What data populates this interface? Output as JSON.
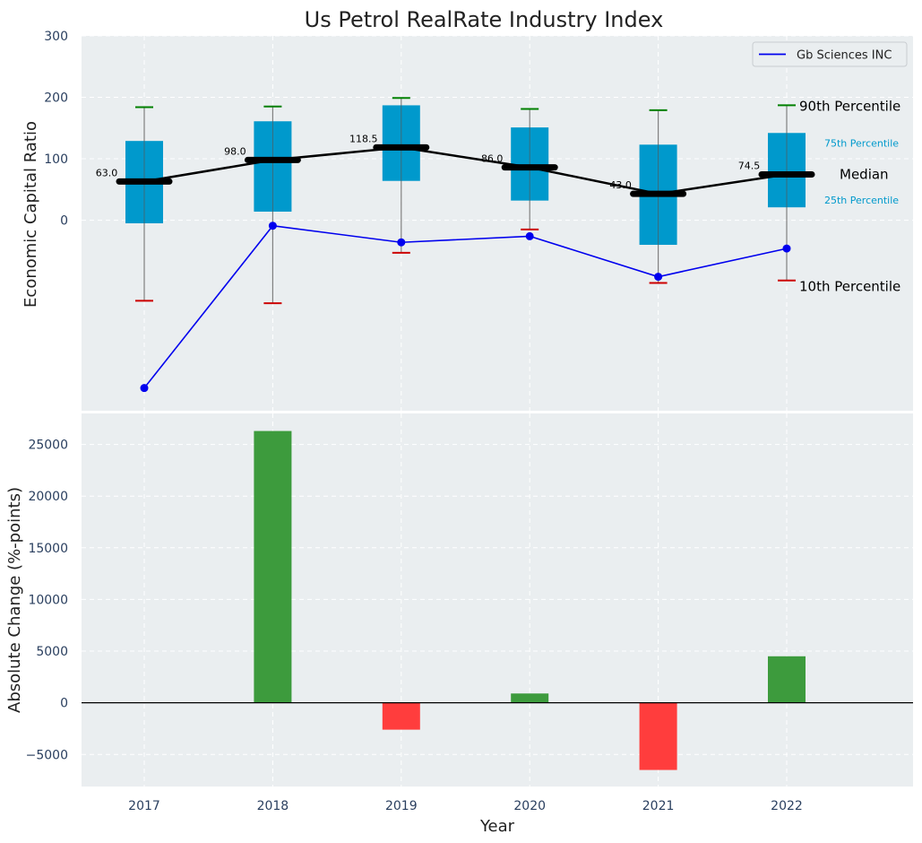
{
  "title": "Us Petrol RealRate Industry Index",
  "colors": {
    "panel_bg": "#eaeef0",
    "box": "#0099cc",
    "median": "#000000",
    "p90_cap": "#008000",
    "p10_cap": "#cc0000",
    "company": "#0000ee",
    "pos_bar": "#3d9b3d",
    "neg_bar": "#ff3d3d",
    "tick_text": "#2a3f5f",
    "pct_label": "#0099cc"
  },
  "chart_data": [
    {
      "type": "box",
      "ylabel": "Economic Capital Ratio",
      "xlabel": "",
      "yticks": [
        0,
        100,
        200,
        300
      ],
      "ylim": [
        -310,
        300
      ],
      "categories": [
        "2017",
        "2018",
        "2019",
        "2020",
        "2021",
        "2022"
      ],
      "p90": [
        184,
        185,
        199,
        181,
        179,
        187
      ],
      "p75": [
        129,
        161,
        187,
        151,
        123,
        142
      ],
      "median": [
        63.0,
        98.0,
        118.5,
        86.0,
        43.0,
        74.5
      ],
      "median_labels": [
        "63.0",
        "98.0",
        "118.5",
        "86.0",
        "43.0",
        "74.5"
      ],
      "p25": [
        -5,
        14,
        64,
        32,
        -40,
        21
      ],
      "p10": [
        -131,
        -135,
        -53,
        -15,
        -102,
        -98
      ],
      "series": [
        {
          "name": "Gb Sciences INC",
          "values": [
            -273,
            -9,
            -36,
            -26,
            -92,
            -46
          ]
        }
      ],
      "legend": {
        "label": "Gb Sciences INC",
        "position": "top-right"
      },
      "annotations": {
        "p90": "90th Percentile",
        "p75": "75th Percentile",
        "median": "Median",
        "p25": "25th Percentile",
        "p10": "10th Percentile"
      },
      "grid": true
    },
    {
      "type": "bar",
      "ylabel": "Absolute Change (%-points)",
      "xlabel": "Year",
      "categories": [
        "2017",
        "2018",
        "2019",
        "2020",
        "2021",
        "2022"
      ],
      "values": [
        0,
        26300,
        -2600,
        900,
        -6500,
        4500
      ],
      "yticks": [
        -5000,
        0,
        5000,
        10000,
        15000,
        20000,
        25000
      ],
      "ytick_labels": [
        "−5000",
        "0",
        "5000",
        "10000",
        "15000",
        "20000",
        "25000"
      ],
      "ylim": [
        -8100,
        28000
      ],
      "grid": true
    }
  ]
}
